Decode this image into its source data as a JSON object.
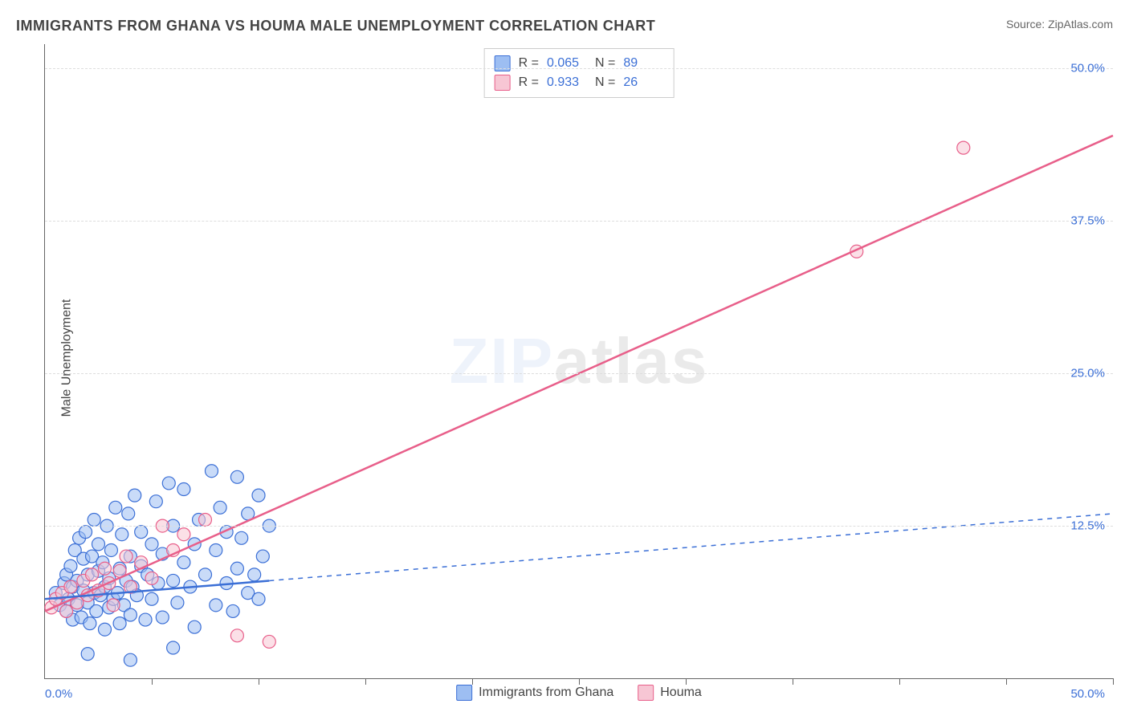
{
  "title": "IMMIGRANTS FROM GHANA VS HOUMA MALE UNEMPLOYMENT CORRELATION CHART",
  "source_label": "Source:",
  "source_value": "ZipAtlas.com",
  "ylabel": "Male Unemployment",
  "watermark_zip": "ZIP",
  "watermark_atlas": "atlas",
  "chart": {
    "type": "scatter",
    "background_color": "#ffffff",
    "grid_color": "#dddddd",
    "axis_color": "#666666",
    "tick_label_color": "#3b6fd6",
    "xlim": [
      0,
      50
    ],
    "ylim": [
      0,
      52
    ],
    "y_ticks": [
      12.5,
      25.0,
      37.5,
      50.0
    ],
    "y_tick_labels": [
      "12.5%",
      "25.0%",
      "37.5%",
      "50.0%"
    ],
    "x_minor_ticks": [
      5,
      10,
      15,
      20,
      25,
      30,
      35,
      40,
      45,
      50
    ],
    "x_origin_label": "0.0%",
    "x_max_label": "50.0%",
    "marker_radius": 8,
    "marker_opacity": 0.55,
    "line_width": 2.5,
    "series_a": {
      "label": "Immigrants from Ghana",
      "color_fill": "#9dbef2",
      "color_stroke": "#3b6fd6",
      "r_label": "R =",
      "r_value": "0.065",
      "n_label": "N =",
      "n_value": "89",
      "trend_solid": [
        [
          0.0,
          6.5
        ],
        [
          10.5,
          8.0
        ]
      ],
      "trend_dashed": [
        [
          10.5,
          8.0
        ],
        [
          50.0,
          13.5
        ]
      ],
      "points": [
        [
          0.5,
          7.0
        ],
        [
          0.7,
          6.0
        ],
        [
          0.9,
          7.8
        ],
        [
          1.0,
          5.5
        ],
        [
          1.0,
          8.5
        ],
        [
          1.1,
          6.5
        ],
        [
          1.2,
          9.2
        ],
        [
          1.3,
          4.8
        ],
        [
          1.3,
          7.5
        ],
        [
          1.4,
          10.5
        ],
        [
          1.5,
          6.0
        ],
        [
          1.5,
          8.0
        ],
        [
          1.6,
          11.5
        ],
        [
          1.7,
          5.0
        ],
        [
          1.8,
          7.2
        ],
        [
          1.8,
          9.8
        ],
        [
          1.9,
          12.0
        ],
        [
          2.0,
          6.2
        ],
        [
          2.0,
          8.5
        ],
        [
          2.1,
          4.5
        ],
        [
          2.2,
          10.0
        ],
        [
          2.3,
          7.0
        ],
        [
          2.3,
          13.0
        ],
        [
          2.4,
          5.5
        ],
        [
          2.5,
          8.8
        ],
        [
          2.5,
          11.0
        ],
        [
          2.6,
          6.8
        ],
        [
          2.7,
          9.5
        ],
        [
          2.8,
          4.0
        ],
        [
          2.8,
          7.5
        ],
        [
          2.9,
          12.5
        ],
        [
          3.0,
          5.8
        ],
        [
          3.0,
          8.2
        ],
        [
          3.1,
          10.5
        ],
        [
          3.2,
          6.5
        ],
        [
          3.3,
          14.0
        ],
        [
          3.4,
          7.0
        ],
        [
          3.5,
          9.0
        ],
        [
          3.5,
          4.5
        ],
        [
          3.6,
          11.8
        ],
        [
          3.7,
          6.0
        ],
        [
          3.8,
          8.0
        ],
        [
          3.9,
          13.5
        ],
        [
          4.0,
          5.2
        ],
        [
          4.0,
          10.0
        ],
        [
          4.1,
          7.5
        ],
        [
          4.2,
          15.0
        ],
        [
          4.3,
          6.8
        ],
        [
          4.5,
          9.2
        ],
        [
          4.5,
          12.0
        ],
        [
          4.7,
          4.8
        ],
        [
          4.8,
          8.5
        ],
        [
          5.0,
          11.0
        ],
        [
          5.0,
          6.5
        ],
        [
          5.2,
          14.5
        ],
        [
          5.3,
          7.8
        ],
        [
          5.5,
          10.2
        ],
        [
          5.5,
          5.0
        ],
        [
          5.8,
          16.0
        ],
        [
          6.0,
          8.0
        ],
        [
          6.0,
          12.5
        ],
        [
          6.2,
          6.2
        ],
        [
          6.5,
          9.5
        ],
        [
          6.5,
          15.5
        ],
        [
          6.8,
          7.5
        ],
        [
          7.0,
          11.0
        ],
        [
          7.0,
          4.2
        ],
        [
          7.2,
          13.0
        ],
        [
          7.5,
          8.5
        ],
        [
          7.8,
          17.0
        ],
        [
          8.0,
          6.0
        ],
        [
          8.0,
          10.5
        ],
        [
          8.2,
          14.0
        ],
        [
          8.5,
          7.8
        ],
        [
          8.5,
          12.0
        ],
        [
          8.8,
          5.5
        ],
        [
          9.0,
          9.0
        ],
        [
          9.0,
          16.5
        ],
        [
          9.2,
          11.5
        ],
        [
          9.5,
          7.0
        ],
        [
          9.5,
          13.5
        ],
        [
          9.8,
          8.5
        ],
        [
          10.0,
          15.0
        ],
        [
          10.0,
          6.5
        ],
        [
          10.2,
          10.0
        ],
        [
          10.5,
          12.5
        ],
        [
          2.0,
          2.0
        ],
        [
          4.0,
          1.5
        ],
        [
          6.0,
          2.5
        ]
      ]
    },
    "series_b": {
      "label": "Houma",
      "color_fill": "#f7c6d4",
      "color_stroke": "#e85f8a",
      "r_label": "R =",
      "r_value": "0.933",
      "n_label": "N =",
      "n_value": "26",
      "trend_solid": [
        [
          0.0,
          5.5
        ],
        [
          50.0,
          44.5
        ]
      ],
      "points": [
        [
          0.3,
          5.8
        ],
        [
          0.5,
          6.5
        ],
        [
          0.8,
          7.0
        ],
        [
          1.0,
          5.5
        ],
        [
          1.2,
          7.5
        ],
        [
          1.5,
          6.2
        ],
        [
          1.8,
          8.0
        ],
        [
          2.0,
          6.8
        ],
        [
          2.2,
          8.5
        ],
        [
          2.5,
          7.2
        ],
        [
          2.8,
          9.0
        ],
        [
          3.0,
          7.8
        ],
        [
          3.2,
          6.0
        ],
        [
          3.5,
          8.8
        ],
        [
          3.8,
          10.0
        ],
        [
          4.0,
          7.5
        ],
        [
          4.5,
          9.5
        ],
        [
          5.0,
          8.2
        ],
        [
          5.5,
          12.5
        ],
        [
          6.0,
          10.5
        ],
        [
          6.5,
          11.8
        ],
        [
          7.5,
          13.0
        ],
        [
          9.0,
          3.5
        ],
        [
          10.5,
          3.0
        ],
        [
          38.0,
          35.0
        ],
        [
          43.0,
          43.5
        ]
      ]
    }
  },
  "bottom_legend": {
    "items": [
      {
        "label": "Immigrants from Ghana",
        "fill": "#9dbef2",
        "stroke": "#3b6fd6"
      },
      {
        "label": "Houma",
        "fill": "#f7c6d4",
        "stroke": "#e85f8a"
      }
    ]
  }
}
